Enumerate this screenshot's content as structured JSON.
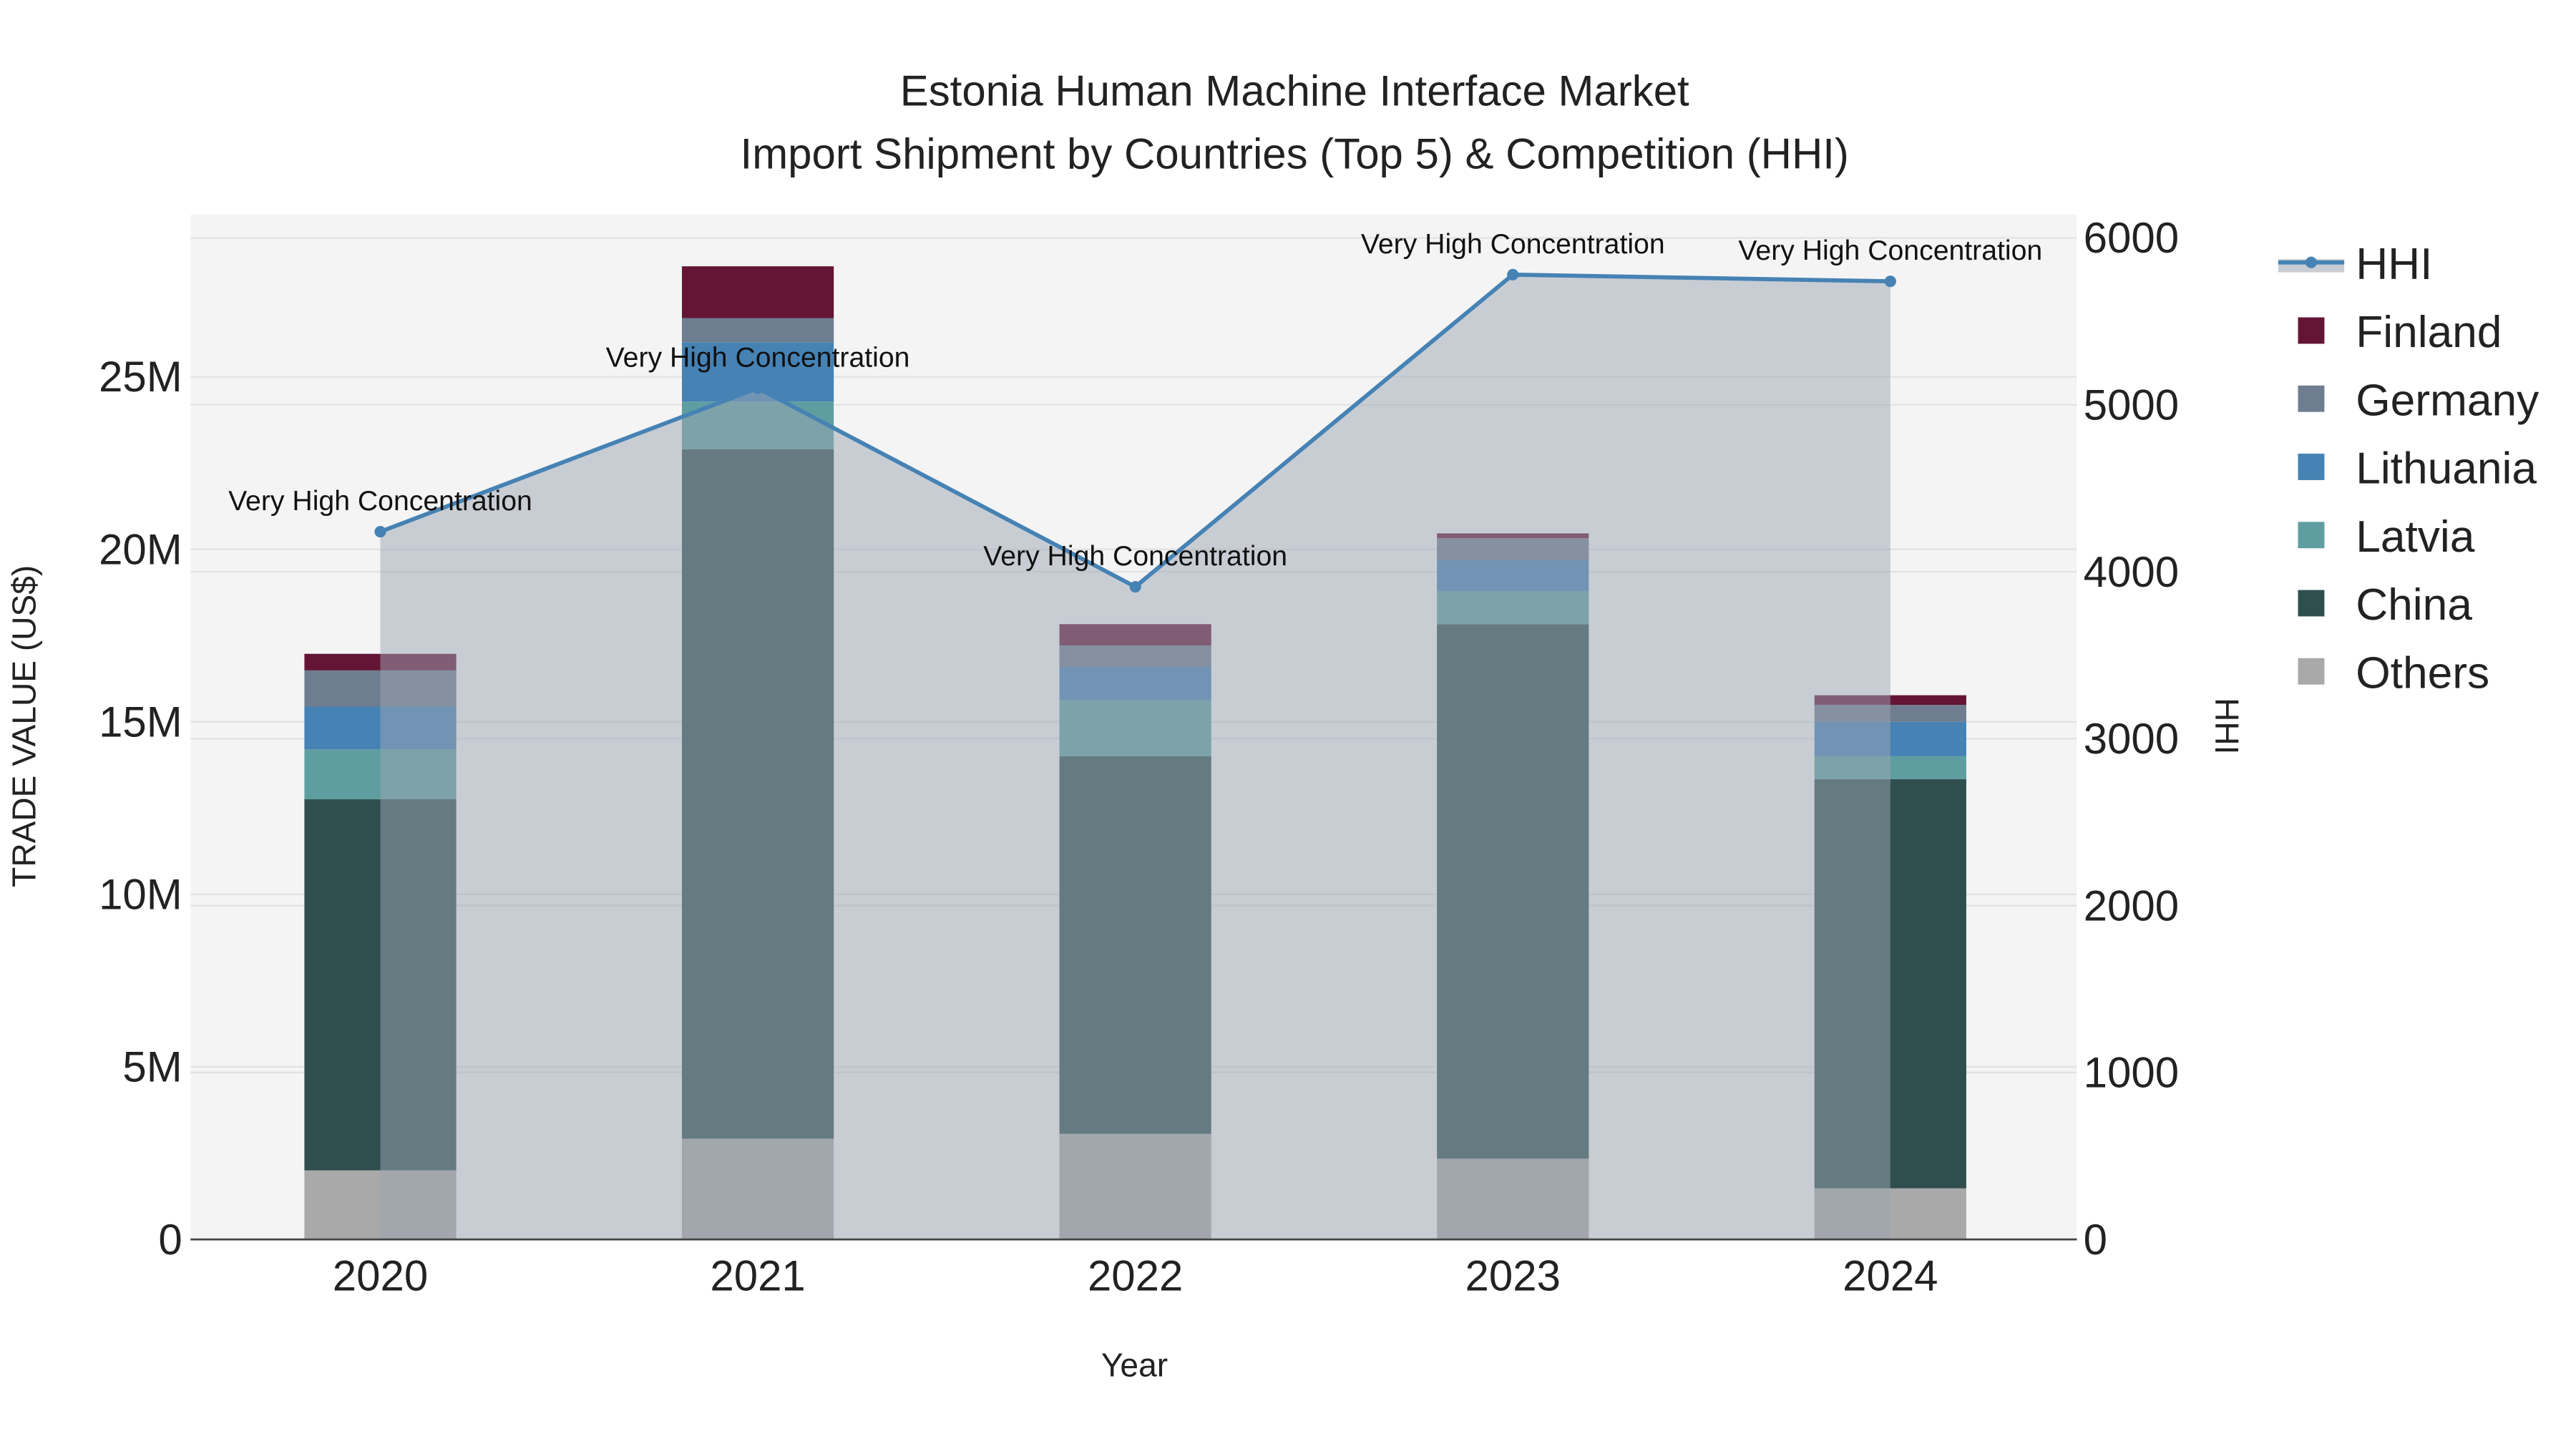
{
  "chart_data": {
    "type": "bar",
    "title": "Estonia Human Machine Interface Market",
    "subtitle": "Import Shipment by Countries (Top 5) & Competition (HHI)",
    "xlabel": "Year",
    "ylabel": "TRADE VALUE (US$)",
    "y2label": "HHI",
    "categories": [
      "2020",
      "2021",
      "2022",
      "2023",
      "2024"
    ],
    "ylim": [
      0,
      29700000
    ],
    "y2lim": [
      0,
      6140
    ],
    "yticks": [
      {
        "v": 0,
        "label": "0"
      },
      {
        "v": 5000000,
        "label": "5M"
      },
      {
        "v": 10000000,
        "label": "10M"
      },
      {
        "v": 15000000,
        "label": "15M"
      },
      {
        "v": 20000000,
        "label": "20M"
      },
      {
        "v": 25000000,
        "label": "25M"
      }
    ],
    "y2ticks": [
      {
        "v": 0,
        "label": "0"
      },
      {
        "v": 1000,
        "label": "1000"
      },
      {
        "v": 2000,
        "label": "2000"
      },
      {
        "v": 3000,
        "label": "3000"
      },
      {
        "v": 4000,
        "label": "4000"
      },
      {
        "v": 5000,
        "label": "5000"
      },
      {
        "v": 6000,
        "label": "6000"
      }
    ],
    "series": [
      {
        "name": "Others",
        "color": "#a9a9a9",
        "values": [
          2000000,
          2920000,
          3060000,
          2340000,
          1480000
        ]
      },
      {
        "name": "China",
        "color": "#2f4f4f",
        "values": [
          10760000,
          19980000,
          10940000,
          15490000,
          11860000
        ]
      },
      {
        "name": "Latvia",
        "color": "#5f9ea0",
        "values": [
          1440000,
          1380000,
          1630000,
          960000,
          660000
        ]
      },
      {
        "name": "Lithuania",
        "color": "#4682b4",
        "values": [
          1240000,
          1720000,
          960000,
          900000,
          1000000
        ]
      },
      {
        "name": "Germany",
        "color": "#6e7d8f",
        "values": [
          1050000,
          700000,
          620000,
          630000,
          490000
        ]
      },
      {
        "name": "Finland",
        "color": "#641535",
        "values": [
          480000,
          1500000,
          620000,
          140000,
          280000
        ]
      }
    ],
    "hhi": {
      "name": "HHI",
      "color": "#4682b4",
      "values": [
        4240,
        5100,
        3910,
        5780,
        5740
      ],
      "annotations": [
        "Very High Concentration",
        "Very High Concentration",
        "Very High Concentration",
        "Very High Concentration",
        "Very High Concentration"
      ]
    },
    "legend": [
      "HHI",
      "Finland",
      "Germany",
      "Lithuania",
      "Latvia",
      "China",
      "Others"
    ],
    "legend_position": "right"
  }
}
